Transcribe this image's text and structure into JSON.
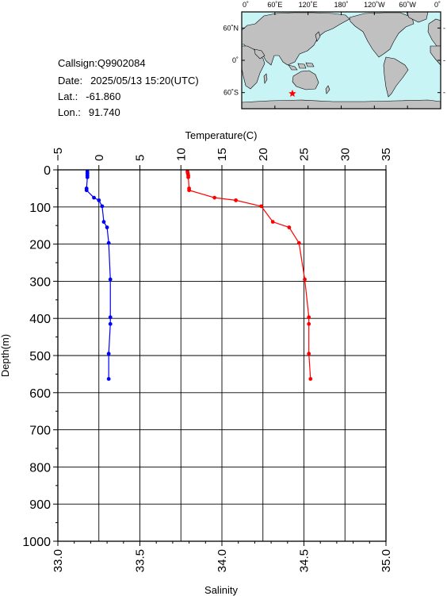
{
  "station": {
    "callsign_label": "Callsign:",
    "callsign": "Q9902084",
    "date_label": "Date:",
    "date": "2025/05/13 15:20(UTC)",
    "lat_label": "Lat.:",
    "lat": "-61.860",
    "lon_label": "Lon.:",
    "lon": "91.740"
  },
  "map": {
    "lon_labels": [
      "0˚",
      "60˚E",
      "120˚E",
      "180˚",
      "120˚W",
      "60˚W",
      "0˚"
    ],
    "lat_labels": [
      "60˚N",
      "0˚",
      "60˚S"
    ],
    "ocean_color": "#c9f4f6",
    "land_color": "#c0c0c0",
    "marker": {
      "lat": -61.86,
      "lon": 91.74,
      "symbol": "star-icon",
      "color": "#ff0000"
    }
  },
  "chart_data": {
    "type": "line",
    "ylabel": "Depth(m)",
    "y_ticks": [
      "0",
      "100",
      "200",
      "300",
      "400",
      "500",
      "600",
      "700",
      "800",
      "900",
      "1000"
    ],
    "ylim": [
      0,
      1000
    ],
    "y_inverted": true,
    "grid": true,
    "top_axis": {
      "label": "Temperature(C)",
      "ticks": [
        "−5",
        "0",
        "5",
        "10",
        "15",
        "20",
        "25",
        "30",
        "35"
      ],
      "lim": [
        -5,
        35
      ]
    },
    "bottom_axis": {
      "label": "Salinity",
      "ticks": [
        "33.0",
        "33.5",
        "34.0",
        "34.5",
        "35.0"
      ],
      "lim": [
        33.0,
        35.0
      ]
    },
    "series": [
      {
        "name": "Temperature",
        "axis": "top",
        "color": "#ff0000",
        "points": [
          {
            "x": 10.8,
            "y": 5
          },
          {
            "x": 10.85,
            "y": 10
          },
          {
            "x": 10.9,
            "y": 15
          },
          {
            "x": 10.9,
            "y": 20
          },
          {
            "x": 11.0,
            "y": 50
          },
          {
            "x": 11.0,
            "y": 55
          },
          {
            "x": 14.1,
            "y": 75
          },
          {
            "x": 16.7,
            "y": 82
          },
          {
            "x": 19.8,
            "y": 98
          },
          {
            "x": 21.2,
            "y": 140
          },
          {
            "x": 23.2,
            "y": 155
          },
          {
            "x": 24.4,
            "y": 197
          },
          {
            "x": 25.1,
            "y": 295
          },
          {
            "x": 25.6,
            "y": 397
          },
          {
            "x": 25.6,
            "y": 415
          },
          {
            "x": 25.6,
            "y": 495
          },
          {
            "x": 25.8,
            "y": 563
          }
        ]
      },
      {
        "name": "Salinity",
        "axis": "bottom",
        "color": "#0000ff",
        "points": [
          {
            "x": 33.18,
            "y": 5
          },
          {
            "x": 33.18,
            "y": 10
          },
          {
            "x": 33.18,
            "y": 15
          },
          {
            "x": 33.18,
            "y": 20
          },
          {
            "x": 33.175,
            "y": 50
          },
          {
            "x": 33.175,
            "y": 55
          },
          {
            "x": 33.22,
            "y": 75
          },
          {
            "x": 33.25,
            "y": 82
          },
          {
            "x": 33.27,
            "y": 98
          },
          {
            "x": 33.28,
            "y": 140
          },
          {
            "x": 33.3,
            "y": 155
          },
          {
            "x": 33.31,
            "y": 197
          },
          {
            "x": 33.32,
            "y": 295
          },
          {
            "x": 33.32,
            "y": 397
          },
          {
            "x": 33.32,
            "y": 415
          },
          {
            "x": 33.31,
            "y": 495
          },
          {
            "x": 33.31,
            "y": 563
          }
        ]
      }
    ]
  }
}
